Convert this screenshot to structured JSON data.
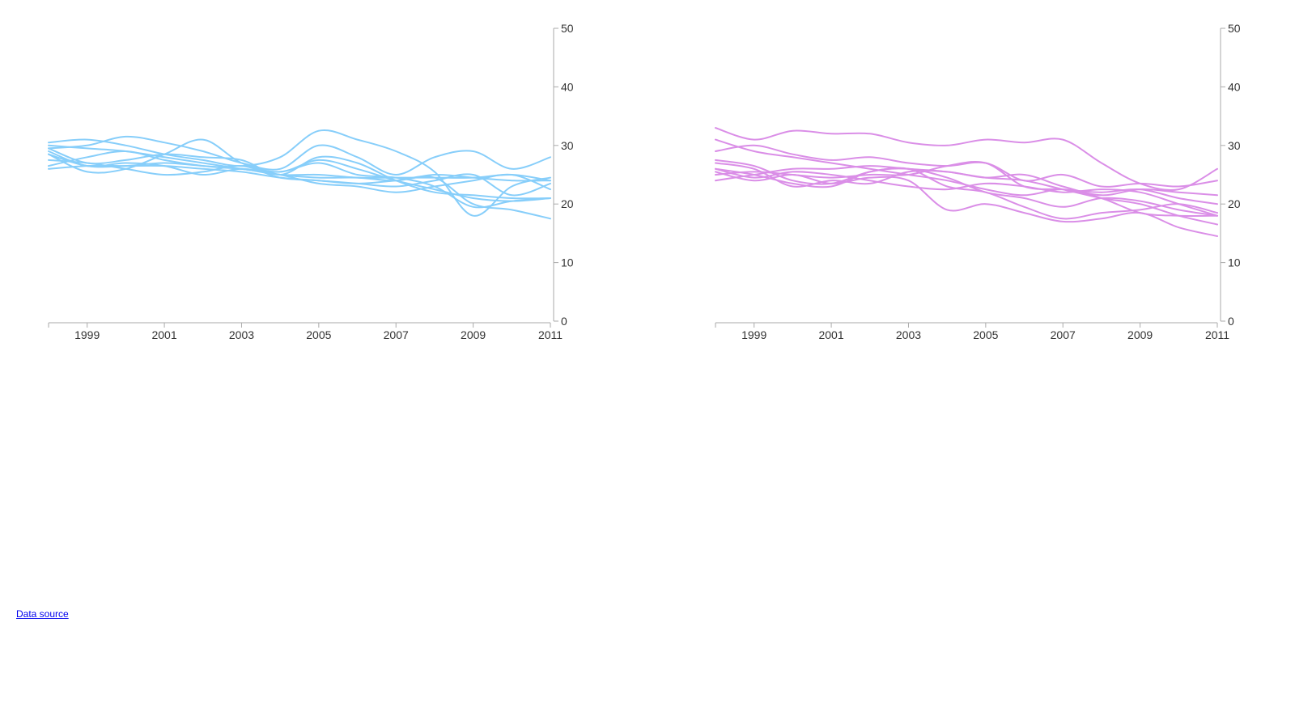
{
  "footer": {
    "source_link": "Data source"
  },
  "colors": {
    "left_series": "#87CEFA",
    "right_series": "#DA8EE7",
    "axis": "#aaaaaa"
  },
  "chart_data": [
    {
      "type": "line",
      "title": "",
      "xlabel": "",
      "ylabel": "",
      "ylim": [
        0,
        50
      ],
      "yticks": [
        0,
        10,
        20,
        30,
        40,
        50
      ],
      "xticks": [
        1999,
        2001,
        2003,
        2005,
        2007,
        2009,
        2011
      ],
      "xlim": [
        1998,
        2011
      ],
      "grid": false,
      "y_axis_position": "right",
      "x": [
        1998,
        1999,
        2000,
        2001,
        2002,
        2003,
        2004,
        2005,
        2006,
        2007,
        2008,
        2009,
        2010,
        2011
      ],
      "series": [
        {
          "values": [
            30.5,
            31.0,
            30.0,
            28.5,
            27.5,
            26.5,
            28.0,
            32.5,
            31.0,
            29.0,
            25.5,
            18.0,
            23.0,
            24.5
          ]
        },
        {
          "values": [
            29.5,
            30.0,
            31.5,
            30.5,
            29.0,
            27.0,
            26.0,
            30.0,
            28.0,
            25.0,
            28.0,
            29.0,
            26.0,
            28.0
          ]
        },
        {
          "values": [
            26.5,
            28.0,
            29.0,
            27.5,
            26.5,
            26.0,
            25.5,
            27.0,
            25.0,
            24.5,
            23.0,
            19.5,
            20.5,
            21.0
          ]
        },
        {
          "values": [
            28.5,
            25.5,
            26.0,
            28.5,
            31.0,
            27.0,
            25.5,
            27.5,
            26.0,
            24.0,
            22.5,
            21.0,
            20.5,
            21.0
          ]
        },
        {
          "values": [
            29.0,
            26.5,
            27.0,
            26.5,
            25.0,
            26.0,
            25.0,
            24.5,
            24.5,
            24.0,
            25.0,
            24.5,
            24.0,
            24.0
          ]
        },
        {
          "values": [
            27.5,
            27.0,
            26.0,
            25.0,
            25.5,
            26.5,
            24.5,
            24.0,
            23.5,
            23.0,
            24.0,
            25.0,
            21.5,
            23.5
          ]
        },
        {
          "values": [
            30.0,
            29.5,
            29.0,
            28.0,
            27.0,
            26.0,
            25.0,
            23.5,
            23.0,
            22.0,
            23.0,
            24.0,
            25.0,
            22.5
          ]
        },
        {
          "values": [
            26.0,
            26.5,
            26.5,
            26.5,
            26.0,
            25.5,
            24.5,
            24.0,
            23.5,
            24.0,
            24.5,
            20.0,
            19.0,
            17.5
          ]
        },
        {
          "values": [
            29.5,
            27.0,
            27.5,
            28.5,
            28.0,
            27.5,
            25.0,
            28.0,
            27.0,
            24.0,
            22.0,
            21.5,
            21.0,
            21.0
          ]
        },
        {
          "values": [
            28.5,
            26.5,
            26.5,
            27.0,
            26.5,
            26.0,
            25.0,
            25.0,
            24.5,
            24.5,
            24.5,
            24.5,
            25.0,
            24.0
          ]
        }
      ]
    },
    {
      "type": "line",
      "title": "",
      "xlabel": "",
      "ylabel": "",
      "ylim": [
        0,
        50
      ],
      "yticks": [
        0,
        10,
        20,
        30,
        40,
        50
      ],
      "xticks": [
        1999,
        2001,
        2003,
        2005,
        2007,
        2009,
        2011
      ],
      "xlim": [
        1998,
        2011
      ],
      "grid": false,
      "y_axis_position": "right",
      "x": [
        1998,
        1999,
        2000,
        2001,
        2002,
        2003,
        2004,
        2005,
        2006,
        2007,
        2008,
        2009,
        2010,
        2011
      ],
      "series": [
        {
          "values": [
            33.0,
            31.0,
            32.5,
            32.0,
            32.0,
            30.5,
            30.0,
            31.0,
            30.5,
            31.0,
            27.0,
            23.5,
            22.5,
            26.0
          ]
        },
        {
          "values": [
            29.0,
            30.0,
            28.5,
            27.5,
            28.0,
            27.0,
            26.5,
            27.0,
            24.0,
            25.0,
            23.0,
            23.5,
            23.0,
            24.0
          ]
        },
        {
          "values": [
            31.0,
            29.0,
            28.0,
            27.0,
            26.0,
            25.0,
            24.0,
            22.5,
            21.5,
            22.5,
            21.0,
            18.5,
            18.0,
            18.0
          ]
        },
        {
          "values": [
            27.5,
            26.5,
            24.0,
            23.5,
            25.5,
            26.0,
            23.0,
            22.0,
            19.5,
            17.5,
            18.5,
            19.0,
            20.0,
            18.5
          ]
        },
        {
          "values": [
            26.0,
            24.5,
            25.5,
            25.0,
            24.0,
            23.0,
            22.5,
            23.5,
            23.0,
            22.0,
            22.5,
            22.0,
            20.0,
            18.0
          ]
        },
        {
          "values": [
            24.0,
            25.0,
            26.0,
            26.0,
            26.5,
            26.0,
            25.5,
            24.5,
            24.0,
            22.5,
            21.0,
            20.0,
            18.0,
            16.5
          ]
        },
        {
          "values": [
            25.5,
            24.0,
            25.0,
            23.5,
            24.5,
            24.0,
            19.0,
            20.0,
            18.5,
            17.0,
            17.5,
            18.5,
            16.0,
            14.5
          ]
        },
        {
          "values": [
            27.0,
            26.0,
            23.0,
            24.0,
            23.5,
            25.5,
            25.5,
            24.5,
            25.0,
            23.0,
            21.5,
            22.5,
            22.0,
            21.5
          ]
        },
        {
          "values": [
            25.0,
            25.5,
            25.0,
            24.5,
            25.0,
            25.0,
            26.5,
            27.0,
            23.0,
            22.5,
            22.0,
            22.5,
            21.0,
            20.0
          ]
        },
        {
          "values": [
            26.0,
            25.0,
            23.5,
            23.0,
            25.5,
            26.0,
            24.5,
            22.0,
            21.0,
            19.5,
            21.0,
            20.5,
            19.0,
            18.0
          ]
        }
      ]
    }
  ]
}
